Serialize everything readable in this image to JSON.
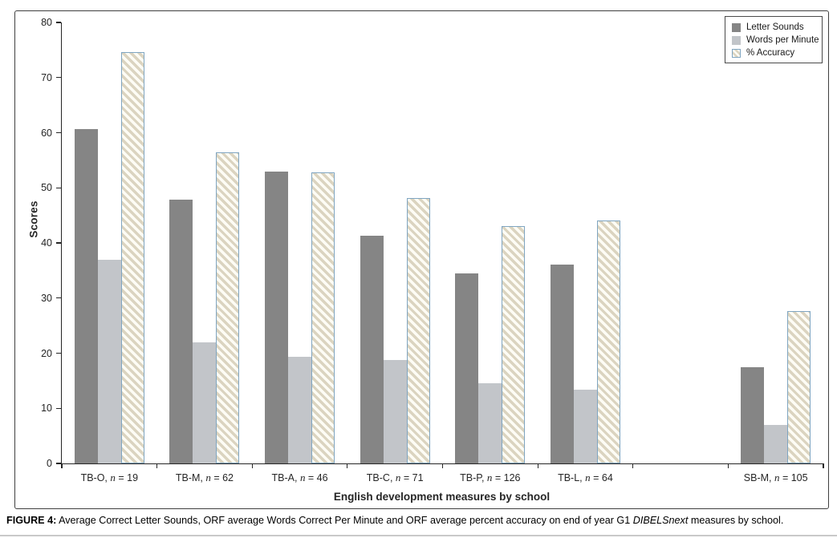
{
  "figure": {
    "caption": {
      "prefix": "FIGURE 4:",
      "body_before": " Average Correct Letter Sounds, ORF average Words Correct Per Minute and ORF average percent accuracy on end of year G1 ",
      "italic": "DIBELSnext",
      "body_after": " measures by school."
    }
  },
  "chart_data": {
    "type": "bar",
    "title": "",
    "xlabel": "English development measures by school",
    "ylabel": "Scores",
    "ylim": [
      0,
      80
    ],
    "ytick_step": 10,
    "grid": false,
    "legend_position": "top-right",
    "categories": [
      {
        "school": "TB-O",
        "n": 19
      },
      {
        "school": "TB-M",
        "n": 62
      },
      {
        "school": "TB-A",
        "n": 46
      },
      {
        "school": "TB-C",
        "n": 71
      },
      {
        "school": "TB-P",
        "n": 126
      },
      {
        "school": "TB-L",
        "n": 64
      },
      null,
      {
        "school": "SB-M",
        "n": 105
      }
    ],
    "series": [
      {
        "name": "Letter Sounds",
        "style": "solid-dark",
        "values": [
          60.7,
          47.8,
          53.0,
          41.3,
          34.5,
          36.1,
          null,
          17.5
        ]
      },
      {
        "name": "Words per Minute",
        "style": "solid-light",
        "values": [
          37.0,
          22.0,
          19.4,
          18.8,
          14.5,
          13.4,
          null,
          7.0
        ]
      },
      {
        "name": "% Accuracy",
        "style": "hatched",
        "values": [
          74.6,
          56.5,
          52.8,
          48.2,
          43.0,
          44.1,
          null,
          27.6
        ]
      }
    ],
    "colors": {
      "letter_sounds": "#858585",
      "words_per_minute": "#c2c5c9",
      "accuracy_stripe": "#dbd4c0",
      "accuracy_background": "#fdfcf5",
      "accuracy_border": "#7fa5c1",
      "axis": "#262626",
      "figure_border": "#3f3f3f",
      "bottom_rule": "#c9c9c9"
    }
  }
}
